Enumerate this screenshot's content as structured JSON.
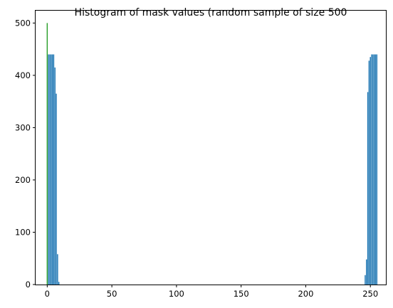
{
  "chart_data": {
    "type": "bar",
    "title": "Histogram of mask values (random sample of size 500",
    "xlabel": "",
    "ylabel": "",
    "xlim": [
      -9,
      262
    ],
    "ylim": [
      0,
      525
    ],
    "xticks": [
      0,
      50,
      100,
      150,
      200,
      250
    ],
    "yticks": [
      0,
      100,
      200,
      300,
      400,
      500
    ],
    "grid": false,
    "legend": "none",
    "colors": {
      "bar": "#1f77b4",
      "accent": "#2ca02c"
    },
    "series": [
      {
        "x": [
          0,
          1,
          2,
          3,
          4,
          5,
          6,
          7,
          8,
          9,
          246,
          247,
          248,
          249,
          250,
          251,
          252,
          253,
          254,
          255
        ],
        "values": [
          500,
          440,
          440,
          440,
          440,
          440,
          415,
          365,
          58,
          5,
          18,
          48,
          368,
          428,
          435,
          440,
          440,
          440,
          440,
          440
        ]
      }
    ]
  }
}
